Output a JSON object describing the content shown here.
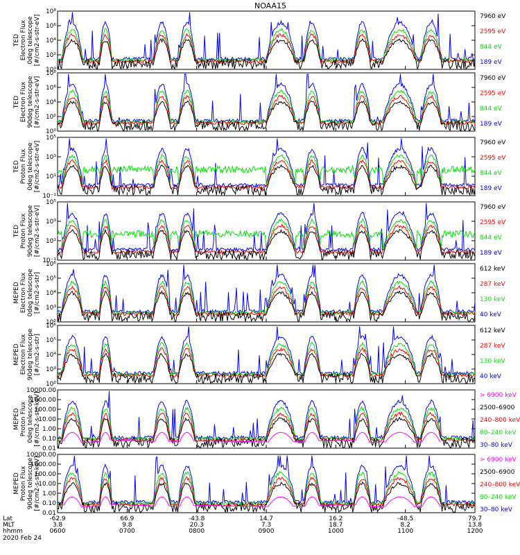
{
  "title": "NOAA15",
  "colors": {
    "black": "#000000",
    "red": "#ff0000",
    "green": "#00e000",
    "blue": "#0000ff",
    "magenta": "#ff00ff",
    "frame": "#000000"
  },
  "chart_data": {
    "type": "line",
    "xaxis": {
      "range": [
        "0600",
        "1200"
      ],
      "rows": [
        {
          "label": "Lat",
          "values": [
            "-62.9",
            "66.9",
            "-43.8",
            "14.7",
            "16.2",
            "-48.5",
            "79.7"
          ]
        },
        {
          "label": "MLT",
          "values": [
            "3.8",
            "9.8",
            "20.3",
            "7.3",
            "18.7",
            "8.2",
            "13.8"
          ]
        },
        {
          "label": "hhmm",
          "values": [
            "0600",
            "0700",
            "0800",
            "0900",
            "1000",
            "1100",
            "1200"
          ]
        }
      ],
      "date": "2020 Feb 24"
    },
    "panels": [
      {
        "ylabel": [
          "TED",
          "Electron Flux",
          "0deg telescope",
          "[#/cm2-s-str-eV]"
        ],
        "yticks": [
          "10⁰",
          "10²",
          "10⁴",
          "10⁶",
          "10⁸"
        ],
        "ylog": [
          0,
          8
        ],
        "legend": [
          {
            "name": "7960 eV",
            "color": "black"
          },
          {
            "name": "2595 eV",
            "color": "red"
          },
          {
            "name": "844 eV",
            "color": "green"
          },
          {
            "name": "189 eV",
            "color": "blue"
          }
        ]
      },
      {
        "ylabel": [
          "TED",
          "Electron Flux",
          "90deg telescope",
          "[#/cm2-s-str-eV]"
        ],
        "yticks": [
          "10⁰",
          "10²",
          "10⁴",
          "10⁶",
          "10⁸"
        ],
        "ylog": [
          0,
          8
        ],
        "legend": [
          {
            "name": "7960 eV",
            "color": "black"
          },
          {
            "name": "2595 eV",
            "color": "red"
          },
          {
            "name": "844 eV",
            "color": "green"
          },
          {
            "name": "189 eV",
            "color": "blue"
          }
        ]
      },
      {
        "ylabel": [
          "TED",
          "Proton Flux",
          "0deg telescope",
          "[#/cm2-s-str-eV]"
        ],
        "yticks": [
          "10⁻¹",
          "10¹",
          "10³",
          "10⁵"
        ],
        "ylog": [
          -1,
          5
        ],
        "legend": [
          {
            "name": "7960 eV",
            "color": "black"
          },
          {
            "name": "2595 eV",
            "color": "red"
          },
          {
            "name": "844 eV",
            "color": "green"
          },
          {
            "name": "189 eV",
            "color": "blue"
          }
        ]
      },
      {
        "ylabel": [
          "TED",
          "Proton Flux",
          "90deg telescope",
          "[#/cm2-s-str-eV]"
        ],
        "yticks": [
          "10⁻¹",
          "10¹",
          "10³",
          "10⁵"
        ],
        "ylog": [
          -1,
          5
        ],
        "legend": [
          {
            "name": "7960 eV",
            "color": "black"
          },
          {
            "name": "2595 eV",
            "color": "red"
          },
          {
            "name": "844 eV",
            "color": "green"
          },
          {
            "name": "189 eV",
            "color": "blue"
          }
        ]
      },
      {
        "ylabel": [
          "MEPED",
          "Electron Flux",
          "0deg telescope",
          "[#/cm2-s-str]"
        ],
        "yticks": [
          "10²",
          "10³",
          "10⁴",
          "10⁵",
          "10⁶"
        ],
        "ylog": [
          2,
          6
        ],
        "legend": [
          {
            "name": "612 keV",
            "color": "black"
          },
          {
            "name": "287 keV",
            "color": "red"
          },
          {
            "name": "130 keV",
            "color": "green"
          },
          {
            "name": "40 keV",
            "color": "blue"
          }
        ]
      },
      {
        "ylabel": [
          "MEPED",
          "Electron Flux",
          "90deg telescope",
          "[#/cm2-s-str]"
        ],
        "yticks": [
          "10²",
          "10³",
          "10⁴",
          "10⁵",
          "10⁶"
        ],
        "ylog": [
          2,
          6
        ],
        "legend": [
          {
            "name": "612 keV",
            "color": "black"
          },
          {
            "name": "287 keV",
            "color": "red"
          },
          {
            "name": "130 keV",
            "color": "green"
          },
          {
            "name": "40 keV",
            "color": "blue"
          }
        ]
      },
      {
        "ylabel": [
          "MEPED",
          "Proton Flux",
          "0deg telescope",
          "[#/cm2-s-str-keV]"
        ],
        "yticks": [
          "0.01",
          "0.10",
          "1.00",
          "10.00",
          "100.00",
          "1000.00",
          "10000.00"
        ],
        "ylog": [
          -2,
          4
        ],
        "legend": [
          {
            "name": "> 6900 keV",
            "color": "magenta"
          },
          {
            "name": "2500–6900",
            "color": "black"
          },
          {
            "name": "240–800 keV",
            "color": "red"
          },
          {
            "name": "80–240 keV",
            "color": "green"
          },
          {
            "name": "30–80 keV",
            "color": "blue"
          }
        ]
      },
      {
        "ylabel": [
          "MEPED",
          "Proton Flux",
          "90deg telescope",
          "[#/cm2-s-str-keV]"
        ],
        "yticks": [
          "0.01",
          "0.10",
          "1.00",
          "10.00",
          "100.00",
          "1000.00",
          "10000.00"
        ],
        "ylog": [
          -2,
          4
        ],
        "legend": [
          {
            "name": "> 6900 keV",
            "color": "magenta"
          },
          {
            "name": "2500–6900",
            "color": "black"
          },
          {
            "name": "240–800 keV",
            "color": "red"
          },
          {
            "name": "80–240 keV",
            "color": "green"
          },
          {
            "name": "30–80 keV",
            "color": "blue"
          }
        ]
      }
    ]
  }
}
